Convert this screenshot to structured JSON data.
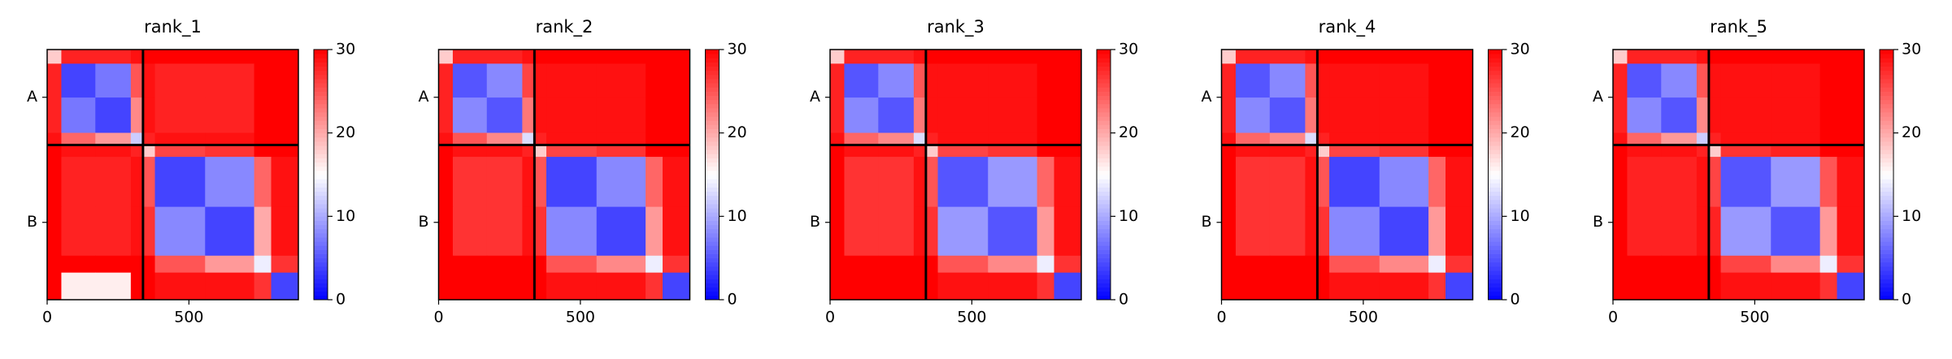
{
  "chart_data": [
    {
      "type": "heatmap",
      "title": "rank_1",
      "xlim": [
        0,
        886
      ],
      "ylim": [
        886,
        0
      ],
      "xticks": [
        0,
        500
      ],
      "yticks": [
        {
          "value": 169,
          "label": "A"
        },
        {
          "value": 612,
          "label": "B"
        }
      ],
      "chain_breaks": [
        338
      ],
      "bin_edges": [
        0,
        50,
        170,
        295,
        338,
        380,
        557,
        730,
        790,
        886
      ],
      "clim": [
        0,
        30
      ],
      "cticks": [
        0,
        10,
        20,
        30
      ],
      "colormap": "bwr",
      "z": [
        [
          18,
          28,
          28,
          29,
          30,
          30,
          30,
          30,
          30
        ],
        [
          28,
          4,
          7,
          25,
          29,
          28,
          28,
          30,
          30
        ],
        [
          28,
          7,
          4,
          22,
          29,
          28,
          28,
          30,
          30
        ],
        [
          29,
          24,
          21,
          12,
          28,
          29,
          29,
          30,
          30
        ],
        [
          30,
          29,
          29,
          28,
          18,
          26,
          27,
          30,
          30
        ],
        [
          30,
          28,
          28,
          29,
          25,
          4,
          8,
          24,
          29
        ],
        [
          30,
          28,
          28,
          29,
          27,
          8,
          4,
          20,
          29
        ],
        [
          30,
          30,
          30,
          30,
          30,
          25,
          21,
          14,
          27
        ],
        [
          30,
          16,
          16,
          30,
          30,
          29,
          29,
          27,
          4
        ]
      ]
    },
    {
      "type": "heatmap",
      "title": "rank_2",
      "xlim": [
        0,
        886
      ],
      "ylim": [
        886,
        0
      ],
      "xticks": [
        0,
        500
      ],
      "yticks": [
        {
          "value": 169,
          "label": "A"
        },
        {
          "value": 612,
          "label": "B"
        }
      ],
      "chain_breaks": [
        338
      ],
      "bin_edges": [
        0,
        50,
        170,
        295,
        338,
        380,
        557,
        730,
        790,
        886
      ],
      "clim": [
        0,
        30
      ],
      "cticks": [
        0,
        10,
        20,
        30
      ],
      "colormap": "bwr",
      "z": [
        [
          18,
          28,
          28,
          29,
          30,
          30,
          30,
          30,
          30
        ],
        [
          28,
          5,
          8,
          26,
          29,
          29,
          29,
          30,
          30
        ],
        [
          28,
          8,
          5,
          23,
          29,
          29,
          29,
          30,
          30
        ],
        [
          29,
          25,
          22,
          13,
          28,
          29,
          29,
          30,
          30
        ],
        [
          30,
          29,
          29,
          28,
          18,
          26,
          27,
          30,
          30
        ],
        [
          30,
          27,
          27,
          29,
          25,
          4,
          8,
          24,
          29
        ],
        [
          30,
          27,
          27,
          29,
          27,
          8,
          4,
          21,
          29
        ],
        [
          30,
          30,
          30,
          30,
          30,
          25,
          22,
          14,
          27
        ],
        [
          30,
          30,
          30,
          30,
          30,
          29,
          29,
          27,
          4
        ]
      ]
    },
    {
      "type": "heatmap",
      "title": "rank_3",
      "xlim": [
        0,
        886
      ],
      "ylim": [
        886,
        0
      ],
      "xticks": [
        0,
        500
      ],
      "yticks": [
        {
          "value": 169,
          "label": "A"
        },
        {
          "value": 612,
          "label": "B"
        }
      ],
      "chain_breaks": [
        338
      ],
      "bin_edges": [
        0,
        50,
        170,
        295,
        338,
        380,
        557,
        730,
        790,
        886
      ],
      "clim": [
        0,
        30
      ],
      "cticks": [
        0,
        10,
        20,
        30
      ],
      "colormap": "bwr",
      "z": [
        [
          18,
          28,
          28,
          29,
          30,
          30,
          30,
          30,
          30
        ],
        [
          28,
          5,
          8,
          25,
          29,
          29,
          29,
          30,
          30
        ],
        [
          28,
          8,
          5,
          23,
          29,
          29,
          29,
          30,
          30
        ],
        [
          29,
          24,
          22,
          13,
          28,
          29,
          29,
          30,
          30
        ],
        [
          30,
          29,
          29,
          28,
          18,
          26,
          27,
          30,
          30
        ],
        [
          30,
          27,
          27,
          29,
          25,
          5,
          9,
          24,
          29
        ],
        [
          30,
          27,
          27,
          29,
          27,
          9,
          5,
          21,
          29
        ],
        [
          30,
          30,
          30,
          30,
          30,
          25,
          22,
          14,
          27
        ],
        [
          30,
          30,
          30,
          30,
          30,
          29,
          29,
          27,
          4
        ]
      ]
    },
    {
      "type": "heatmap",
      "title": "rank_4",
      "xlim": [
        0,
        886
      ],
      "ylim": [
        886,
        0
      ],
      "xticks": [
        0,
        500
      ],
      "yticks": [
        {
          "value": 169,
          "label": "A"
        },
        {
          "value": 612,
          "label": "B"
        }
      ],
      "chain_breaks": [
        338
      ],
      "bin_edges": [
        0,
        50,
        170,
        295,
        338,
        380,
        557,
        730,
        790,
        886
      ],
      "clim": [
        0,
        30
      ],
      "cticks": [
        0,
        10,
        20,
        30
      ],
      "colormap": "bwr",
      "z": [
        [
          18,
          28,
          28,
          29,
          30,
          30,
          30,
          30,
          30
        ],
        [
          28,
          5,
          8,
          25,
          29,
          29,
          29,
          30,
          30
        ],
        [
          28,
          8,
          5,
          23,
          29,
          29,
          29,
          30,
          30
        ],
        [
          29,
          24,
          22,
          13,
          28,
          29,
          29,
          30,
          30
        ],
        [
          30,
          29,
          29,
          28,
          18,
          26,
          27,
          30,
          30
        ],
        [
          30,
          27,
          27,
          29,
          25,
          4,
          8,
          24,
          29
        ],
        [
          30,
          27,
          27,
          29,
          27,
          8,
          4,
          21,
          29
        ],
        [
          30,
          30,
          30,
          30,
          30,
          25,
          22,
          14,
          27
        ],
        [
          30,
          30,
          30,
          30,
          30,
          29,
          29,
          27,
          4
        ]
      ]
    },
    {
      "type": "heatmap",
      "title": "rank_5",
      "xlim": [
        0,
        886
      ],
      "ylim": [
        886,
        0
      ],
      "xticks": [
        0,
        500
      ],
      "yticks": [
        {
          "value": 169,
          "label": "A"
        },
        {
          "value": 612,
          "label": "B"
        }
      ],
      "chain_breaks": [
        338
      ],
      "bin_edges": [
        0,
        50,
        170,
        295,
        338,
        380,
        557,
        730,
        790,
        886
      ],
      "clim": [
        0,
        30
      ],
      "cticks": [
        0,
        10,
        20,
        30
      ],
      "colormap": "bwr",
      "z": [
        [
          18,
          28,
          28,
          29,
          30,
          30,
          30,
          30,
          30
        ],
        [
          28,
          5,
          8,
          25,
          29,
          29,
          29,
          30,
          30
        ],
        [
          28,
          8,
          5,
          22,
          29,
          29,
          29,
          30,
          30
        ],
        [
          29,
          24,
          21,
          12,
          28,
          29,
          29,
          30,
          30
        ],
        [
          30,
          29,
          29,
          28,
          18,
          27,
          28,
          30,
          30
        ],
        [
          30,
          28,
          28,
          29,
          26,
          5,
          9,
          25,
          29
        ],
        [
          30,
          28,
          28,
          29,
          28,
          9,
          5,
          21,
          29
        ],
        [
          30,
          30,
          30,
          30,
          30,
          26,
          22,
          14,
          27
        ],
        [
          30,
          30,
          30,
          30,
          30,
          29,
          29,
          27,
          4
        ]
      ]
    }
  ]
}
